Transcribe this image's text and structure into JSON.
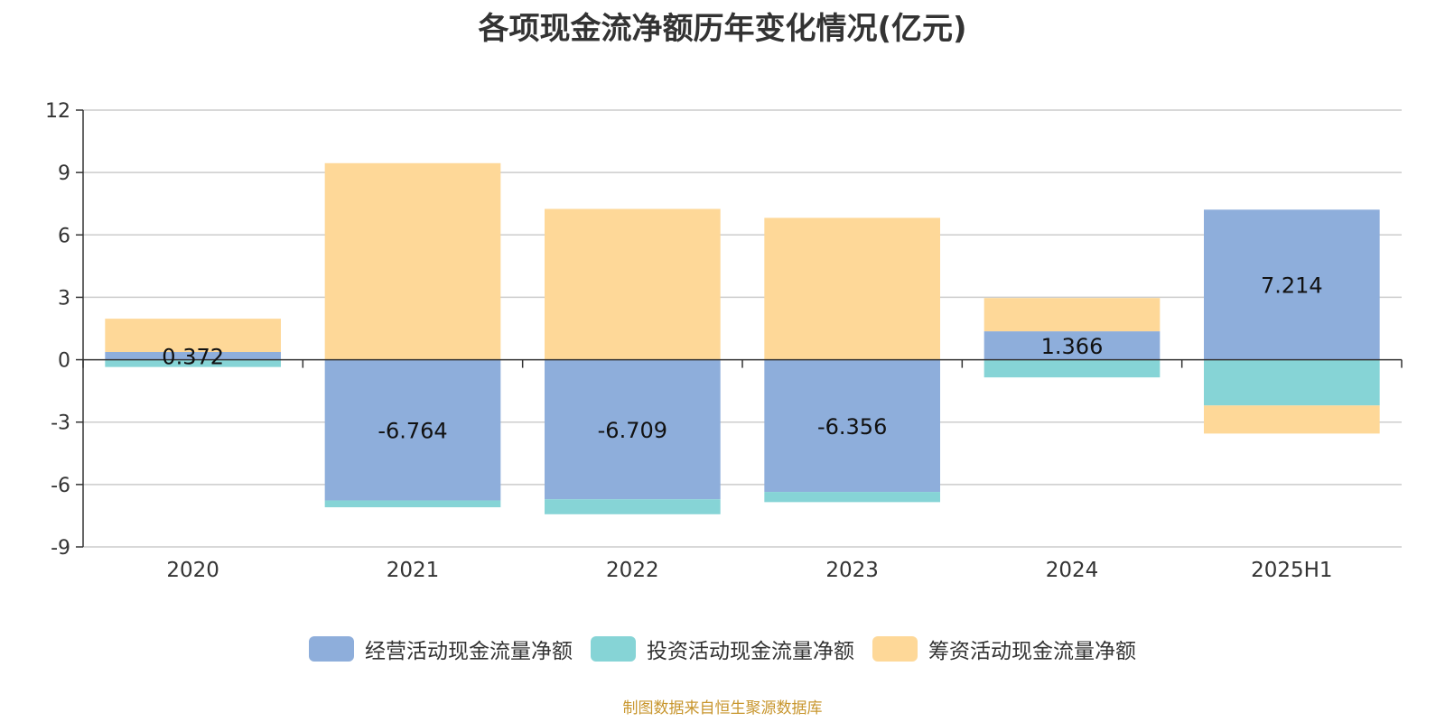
{
  "chart_data": {
    "type": "bar",
    "stacked": true,
    "title": "各项现金流净额历年变化情况(亿元)",
    "categories": [
      "2020",
      "2021",
      "2022",
      "2023",
      "2024",
      "2025H1"
    ],
    "ylim": [
      -9,
      12
    ],
    "yticks": [
      -9,
      -6,
      -3,
      0,
      3,
      6,
      9,
      12
    ],
    "grid": true,
    "legend_position": "bottom",
    "series": [
      {
        "name": "经营活动现金流量净额",
        "color": "#8eaedb",
        "values": [
          0.372,
          -6.764,
          -6.709,
          -6.356,
          1.366,
          7.214
        ]
      },
      {
        "name": "投资活动现金流量净额",
        "color": "#86d4d6",
        "values": [
          -0.35,
          -0.33,
          -0.72,
          -0.49,
          -0.85,
          -2.2
        ]
      },
      {
        "name": "筹资活动现金流量净额",
        "color": "#fed898",
        "values": [
          1.6,
          9.45,
          7.25,
          6.82,
          1.6,
          -1.35
        ]
      }
    ],
    "data_labels": [
      "0.372",
      "-6.764",
      "-6.709",
      "-6.356",
      "1.366",
      "7.214"
    ]
  },
  "source_note": "制图数据来自恒生聚源数据库"
}
